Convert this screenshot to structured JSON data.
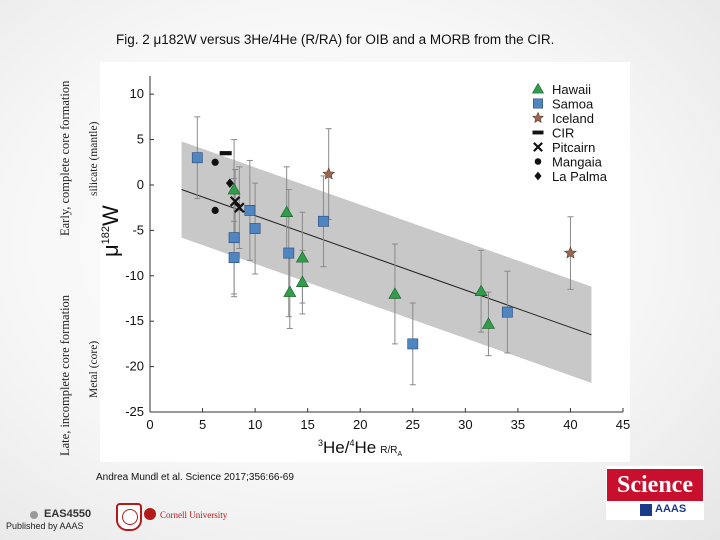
{
  "slide": {
    "title": "Fig. 2 μ182W versus 3He/4He (R/RA) for OIB and a MORB from the CIR.",
    "side_early": "Early, complete core formation",
    "side_late": "Late, incomplete core formation",
    "side_silicate": "silicate (mantle)",
    "side_metal": "Metal (core)",
    "citation": "Andrea Mundl et al. Science 2017;356:66-69",
    "published": "Published by AAAS",
    "course": "EAS4550",
    "cornell": "Cornell University",
    "science_logo": "Science",
    "aaas_logo": "AAAS"
  },
  "colors": {
    "hawaii": "#2e9e4a",
    "samoa": "#4f86c2",
    "iceland": "#9a6650",
    "black": "#111111",
    "band": "#c8c8c8",
    "errorbar": "#8a8a8a"
  },
  "chart_data": {
    "type": "scatter",
    "title": "",
    "xlabel": "3He/4He R/RA",
    "ylabel": "μ182W",
    "xlim": [
      0,
      45
    ],
    "ylim": [
      -25,
      12
    ],
    "xticks": [
      0,
      5,
      10,
      15,
      20,
      25,
      30,
      35,
      40,
      45
    ],
    "yticks": [
      -25,
      -20,
      -15,
      -10,
      -5,
      0,
      5,
      10
    ],
    "legend_position": "top-right",
    "regression": {
      "x": [
        3,
        42
      ],
      "y": [
        -0.5,
        -16.5
      ],
      "band_half_width": 5.3
    },
    "series": [
      {
        "name": "Hawaii",
        "marker": "triangle",
        "color": "#2e9e4a",
        "points": [
          {
            "x": 8,
            "y": -0.5,
            "err": 5.5
          },
          {
            "x": 13,
            "y": -3,
            "err": 5
          },
          {
            "x": 13.3,
            "y": -11.8,
            "err": 4
          },
          {
            "x": 14.5,
            "y": -8,
            "err": 5
          },
          {
            "x": 14.5,
            "y": -10.7,
            "err": 3.5
          },
          {
            "x": 23.3,
            "y": -12,
            "err": 5.5
          },
          {
            "x": 31.5,
            "y": -11.7,
            "err": 4.5
          },
          {
            "x": 32.2,
            "y": -15.3,
            "err": 3.5
          }
        ]
      },
      {
        "name": "Samoa",
        "marker": "square",
        "color": "#4f86c2",
        "points": [
          {
            "x": 4.5,
            "y": 3,
            "err": 4.5
          },
          {
            "x": 8,
            "y": -5.8,
            "err": 6.5
          },
          {
            "x": 8,
            "y": -8,
            "err": 4
          },
          {
            "x": 9.5,
            "y": -2.8,
            "err": 5.5
          },
          {
            "x": 10,
            "y": -4.8,
            "err": 5
          },
          {
            "x": 13.2,
            "y": -7.5,
            "err": 7
          },
          {
            "x": 16.5,
            "y": -4,
            "err": 5
          },
          {
            "x": 25,
            "y": -17.5,
            "err": 4.5
          },
          {
            "x": 34,
            "y": -14,
            "err": 4.5
          }
        ]
      },
      {
        "name": "Iceland",
        "marker": "star",
        "color": "#9a6650",
        "points": [
          {
            "x": 17,
            "y": 1.2,
            "err": 5
          },
          {
            "x": 40,
            "y": -7.5,
            "err": 4
          }
        ]
      },
      {
        "name": "CIR",
        "marker": "bar",
        "color": "#111111",
        "points": [
          {
            "x": 7.2,
            "y": 3.5,
            "err": 0
          }
        ]
      },
      {
        "name": "Pitcairn",
        "marker": "x",
        "color": "#111111",
        "points": [
          {
            "x": 8.1,
            "y": -1.8,
            "err": 3.5
          },
          {
            "x": 8.5,
            "y": -2.5,
            "err": 4.5
          }
        ]
      },
      {
        "name": "Mangaia",
        "marker": "circle",
        "color": "#111111",
        "points": [
          {
            "x": 6.2,
            "y": 2.5,
            "err": 0
          },
          {
            "x": 6.2,
            "y": -2.8,
            "err": 0
          }
        ]
      },
      {
        "name": "La Palma",
        "marker": "diamond",
        "color": "#111111",
        "points": [
          {
            "x": 7.6,
            "y": 0.2,
            "err": 0
          }
        ]
      }
    ]
  }
}
